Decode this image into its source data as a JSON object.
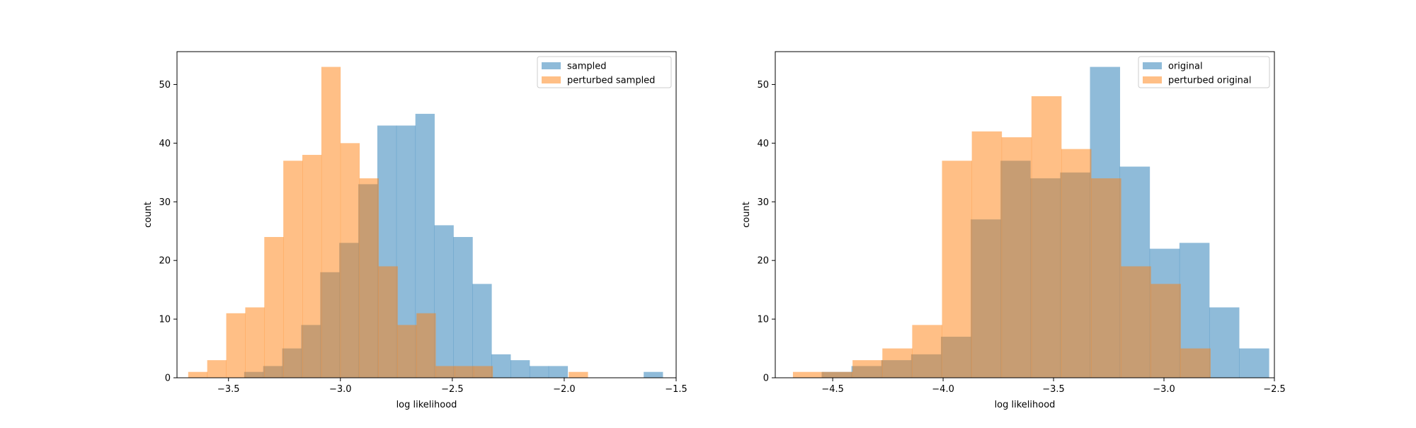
{
  "chart_data": [
    {
      "type": "histogram",
      "xlabel": "log likelihood",
      "ylabel": "count",
      "xlim": [
        -3.73,
        -1.5
      ],
      "ylim": [
        0,
        55.6
      ],
      "xticks": [
        -3.5,
        -3.0,
        -2.5,
        -2.0,
        -1.5
      ],
      "xtick_labels": [
        "−3.5",
        "−3.0",
        "−2.5",
        "−2.0",
        "−1.5"
      ],
      "yticks": [
        0,
        10,
        20,
        30,
        40,
        50
      ],
      "ytick_labels": [
        "0",
        "10",
        "20",
        "30",
        "40",
        "50"
      ],
      "grid": false,
      "legend_position": "top-right",
      "series": [
        {
          "name": "sampled",
          "color": "#1f77b4",
          "opacity": 0.5,
          "bin_edges": [
            -3.43,
            -3.345,
            -3.26,
            -3.175,
            -3.09,
            -3.005,
            -2.92,
            -2.835,
            -2.75,
            -2.665,
            -2.58,
            -2.495,
            -2.41,
            -2.325,
            -2.24,
            -2.155,
            -2.07,
            -1.985,
            -1.9,
            -1.815,
            -1.73,
            -1.645,
            -1.56
          ],
          "counts": [
            1,
            2,
            5,
            9,
            18,
            23,
            33,
            43,
            43,
            45,
            26,
            24,
            16,
            4,
            3,
            2,
            2,
            0,
            0,
            0,
            0,
            1
          ]
        },
        {
          "name": "perturbed sampled",
          "color": "#ff7f0e",
          "opacity": 0.5,
          "bin_edges": [
            -3.68,
            -3.595,
            -3.51,
            -3.425,
            -3.34,
            -3.255,
            -3.17,
            -3.085,
            -3.0,
            -2.915,
            -2.83,
            -2.745,
            -2.66,
            -2.575,
            -2.49,
            -2.405,
            -2.32,
            -2.235,
            -2.15,
            -2.065,
            -1.98,
            -1.895
          ],
          "counts": [
            1,
            3,
            11,
            12,
            24,
            37,
            38,
            53,
            40,
            34,
            19,
            9,
            11,
            2,
            2,
            2,
            0,
            0,
            0,
            0,
            1
          ]
        }
      ]
    },
    {
      "type": "histogram",
      "xlabel": "log likelihood",
      "ylabel": "count",
      "xlim": [
        -4.76,
        -2.5
      ],
      "ylim": [
        0,
        55.6
      ],
      "xticks": [
        -4.5,
        -4.0,
        -3.5,
        -3.0,
        -2.5
      ],
      "xtick_labels": [
        "−4.5",
        "−4.0",
        "−3.5",
        "−3.0",
        "−2.5"
      ],
      "yticks": [
        0,
        10,
        20,
        30,
        40,
        50
      ],
      "ytick_labels": [
        "0",
        "10",
        "20",
        "30",
        "40",
        "50"
      ],
      "grid": false,
      "legend_position": "top-right",
      "series": [
        {
          "name": "original",
          "color": "#1f77b4",
          "opacity": 0.5,
          "bin_edges": [
            -4.55,
            -4.415,
            -4.28,
            -4.145,
            -4.01,
            -3.875,
            -3.74,
            -3.605,
            -3.47,
            -3.335,
            -3.2,
            -3.065,
            -2.93,
            -2.795,
            -2.66,
            -2.525
          ],
          "counts": [
            1,
            2,
            3,
            4,
            7,
            27,
            37,
            34,
            35,
            53,
            36,
            22,
            23,
            12,
            5
          ]
        },
        {
          "name": "perturbed original",
          "color": "#ff7f0e",
          "opacity": 0.5,
          "bin_edges": [
            -4.68,
            -4.545,
            -4.41,
            -4.275,
            -4.14,
            -4.005,
            -3.87,
            -3.735,
            -3.6,
            -3.465,
            -3.33,
            -3.195,
            -3.06,
            -2.925,
            -2.79
          ],
          "counts": [
            1,
            1,
            3,
            5,
            9,
            37,
            42,
            41,
            48,
            39,
            34,
            19,
            16,
            5
          ]
        }
      ]
    }
  ]
}
